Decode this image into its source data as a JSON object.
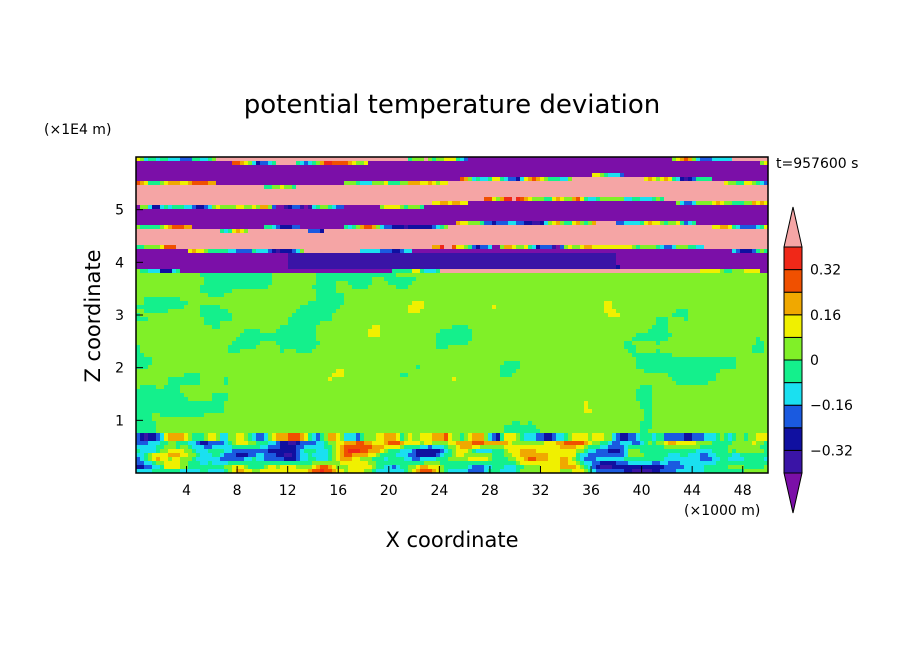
{
  "chart_data": {
    "type": "heatmap",
    "title": "potential temperature deviation",
    "xlabel": "X coordinate",
    "ylabel": "Z coordinate",
    "x_unit": "(×1000 m)",
    "y_unit": "(×1E4 m)",
    "time_label": "t=957600 s",
    "xlim": [
      0,
      50
    ],
    "ylim": [
      0,
      6
    ],
    "x_ticks": [
      4,
      8,
      12,
      16,
      20,
      24,
      28,
      32,
      36,
      40,
      44,
      48
    ],
    "y_ticks": [
      1,
      2,
      3,
      4,
      5
    ],
    "colorbar": {
      "levels": [
        -0.4,
        -0.32,
        -0.24,
        -0.16,
        -0.08,
        0,
        0.08,
        0.16,
        0.24,
        0.32,
        0.4
      ],
      "labeled_levels": [
        0.32,
        0.16,
        0,
        -0.16,
        -0.32
      ],
      "tick_labels": [
        "0.32",
        "0.16",
        "0",
        "−0.16",
        "−0.32"
      ],
      "colors_low_to_high": [
        "#7b0fa8",
        "#3a14a6",
        "#1010a0",
        "#1a5ae0",
        "#1ae0f0",
        "#14f08c",
        "#80f028",
        "#f0f000",
        "#f0a800",
        "#f05000",
        "#f02818",
        "#f5a5a5"
      ],
      "extend": "both"
    }
  }
}
